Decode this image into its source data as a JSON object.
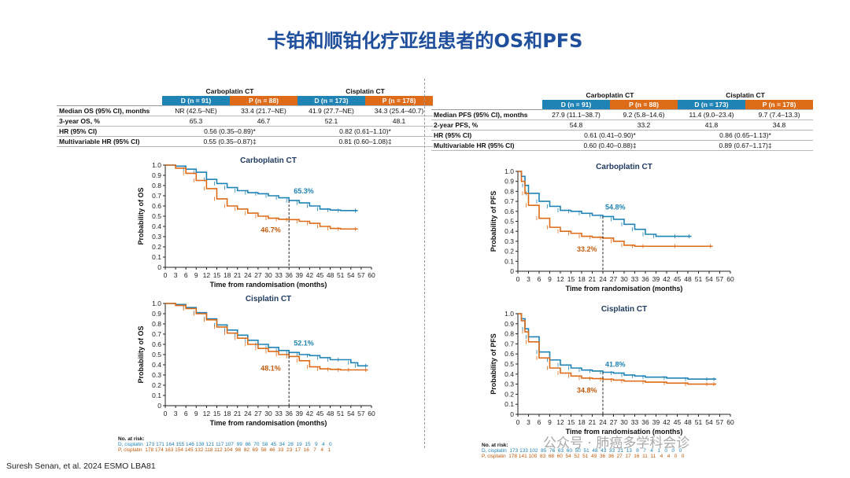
{
  "slide_title": "卡铂和顺铂化疗亚组患者的OS和PFS",
  "citation": "Suresh Senan, et al. 2024 ESMO LBA81",
  "watermark": "公众号 · 肺癌多学科会诊",
  "colors": {
    "durvalumab": "#1f83b5",
    "placebo": "#dd6b18",
    "title": "#1f4e9c"
  },
  "os_table": {
    "group1": "Carboplatin CT",
    "group2": "Cisplatin CT",
    "arms": [
      "D (n = 91)",
      "P (n = 88)",
      "D (n = 173)",
      "P (n = 178)"
    ],
    "rows": [
      {
        "label": "Median OS (95% CI), months",
        "vals": [
          "NR (42.5–NE)",
          "33.4 (21.7–NE)",
          "41.9 (27.7–NE)",
          "34.3 (25.4–40.7)"
        ]
      },
      {
        "label": "3-year OS, %",
        "vals": [
          "65.3",
          "46.7",
          "52.1",
          "48.1"
        ]
      },
      {
        "label": "HR (95% CI)",
        "merged": [
          "0.56 (0.35–0.89)*",
          "0.82 (0.61–1.10)*"
        ]
      },
      {
        "label": "Multivariable HR (95% CI)",
        "merged": [
          "0.55 (0.35–0.87)‡",
          "0.81 (0.60–1.08)‡"
        ]
      }
    ]
  },
  "pfs_table": {
    "group1": "Carboplatin CT",
    "group2": "Cisplatin CT",
    "arms": [
      "D (n = 91)",
      "P (n = 88)",
      "D (n = 173)",
      "P (n = 178)"
    ],
    "rows": [
      {
        "label": "Median PFS (95% CI), months",
        "vals": [
          "27.9 (11.1–38.7)",
          "9.2 (5.8–14.6)",
          "11.4 (9.0–23.4)",
          "9.7 (7.4–13.3)"
        ]
      },
      {
        "label": "2-year PFS, %",
        "vals": [
          "54.8",
          "33.2",
          "41.8",
          "34.8"
        ]
      },
      {
        "label": "HR (95% CI)",
        "merged": [
          "0.61 (0.41–0.90)*",
          "0.86 (0.65–1.13)*"
        ]
      },
      {
        "label": "Multivariable HR (95% CI)",
        "merged": [
          "0.60 (0.40–0.88)‡",
          "0.89 (0.67–1.17)‡"
        ]
      }
    ]
  },
  "risk_tables": {
    "os": {
      "header": "No. at risk:",
      "d_label": "D, cisplatin",
      "p_label": "P, cisplatin",
      "d_values": "173 171 164 155 146 138 121 117 107  99  86  70  58  45  34  28  19  15   9   4   0",
      "p_values": "178 174 163 154 145 132 118 112 104  98  82  69  58  46  33  23  17  16   7   4   1"
    },
    "pfs": {
      "header": "No. at risk:",
      "d_label": "D, cisplatin",
      "p_label": "P, cisplatin",
      "d_values": "173 133 102  85  76  63  60  50  51  48  43  33  21  13   8   7   4   1   0   0   0",
      "p_values": "178 141 100  83  68  60  54  52  51  49  36  36  27  17  16  11  11   4   4   0   0"
    }
  },
  "chart_data": [
    {
      "type": "line",
      "title": "Carboplatin CT",
      "xlabel": "Time from randomisation (months)",
      "ylabel": "Probability of OS",
      "xlim": [
        0,
        60
      ],
      "ylim": [
        0,
        1
      ],
      "xticks": [
        0,
        3,
        6,
        9,
        12,
        15,
        18,
        21,
        24,
        27,
        30,
        33,
        36,
        39,
        42,
        45,
        48,
        51,
        54,
        57,
        60
      ],
      "yticks": [
        "0",
        "0.1",
        "0.2",
        "0.3",
        "0.4",
        "0.5",
        "0.6",
        "0.7",
        "0.8",
        "0.9",
        "1.0"
      ],
      "marker_x": 36,
      "series": [
        {
          "values": [
            [
              0,
              1
            ],
            [
              3,
              0.99
            ],
            [
              6,
              0.96
            ],
            [
              9,
              0.93
            ],
            [
              12,
              0.86
            ],
            [
              15,
              0.82
            ],
            [
              18,
              0.78
            ],
            [
              21,
              0.75
            ],
            [
              24,
              0.73
            ],
            [
              27,
              0.72
            ],
            [
              30,
              0.7
            ],
            [
              33,
              0.68
            ],
            [
              36,
              0.653
            ],
            [
              39,
              0.63
            ],
            [
              42,
              0.6
            ],
            [
              45,
              0.57
            ],
            [
              48,
              0.56
            ],
            [
              51,
              0.555
            ],
            [
              56,
              0.555
            ]
          ],
          "annotation": "65.3%"
        },
        {
          "values": [
            [
              0,
              1
            ],
            [
              3,
              0.97
            ],
            [
              6,
              0.92
            ],
            [
              9,
              0.85
            ],
            [
              12,
              0.77
            ],
            [
              15,
              0.67
            ],
            [
              18,
              0.6
            ],
            [
              21,
              0.57
            ],
            [
              24,
              0.53
            ],
            [
              27,
              0.5
            ],
            [
              30,
              0.48
            ],
            [
              33,
              0.47
            ],
            [
              36,
              0.467
            ],
            [
              39,
              0.45
            ],
            [
              42,
              0.43
            ],
            [
              45,
              0.4
            ],
            [
              48,
              0.38
            ],
            [
              51,
              0.375
            ],
            [
              56,
              0.375
            ]
          ],
          "annotation": "46.7%"
        }
      ]
    },
    {
      "type": "line",
      "title": "Cisplatin CT",
      "xlabel": "Time from randomisation (months)",
      "ylabel": "Probability of OS",
      "xlim": [
        0,
        60
      ],
      "ylim": [
        0,
        1
      ],
      "xticks": [
        0,
        3,
        6,
        9,
        12,
        15,
        18,
        21,
        24,
        27,
        30,
        33,
        36,
        39,
        42,
        45,
        48,
        51,
        54,
        57,
        60
      ],
      "yticks": [
        "0",
        "0.1",
        "0.2",
        "0.3",
        "0.4",
        "0.5",
        "0.6",
        "0.7",
        "0.8",
        "0.9",
        "1.0"
      ],
      "marker_x": 36,
      "series": [
        {
          "values": [
            [
              0,
              1
            ],
            [
              3,
              0.99
            ],
            [
              6,
              0.96
            ],
            [
              9,
              0.91
            ],
            [
              12,
              0.85
            ],
            [
              15,
              0.79
            ],
            [
              18,
              0.74
            ],
            [
              21,
              0.69
            ],
            [
              24,
              0.64
            ],
            [
              27,
              0.6
            ],
            [
              30,
              0.57
            ],
            [
              33,
              0.54
            ],
            [
              36,
              0.521
            ],
            [
              39,
              0.5
            ],
            [
              42,
              0.49
            ],
            [
              45,
              0.47
            ],
            [
              48,
              0.45
            ],
            [
              51,
              0.45
            ],
            [
              54,
              0.42
            ],
            [
              56,
              0.39
            ],
            [
              59,
              0.39
            ]
          ],
          "annotation": "52.1%"
        },
        {
          "values": [
            [
              0,
              1
            ],
            [
              3,
              0.98
            ],
            [
              6,
              0.95
            ],
            [
              9,
              0.9
            ],
            [
              12,
              0.84
            ],
            [
              15,
              0.77
            ],
            [
              18,
              0.71
            ],
            [
              21,
              0.66
            ],
            [
              24,
              0.6
            ],
            [
              27,
              0.56
            ],
            [
              30,
              0.53
            ],
            [
              33,
              0.5
            ],
            [
              36,
              0.481
            ],
            [
              39,
              0.44
            ],
            [
              42,
              0.38
            ],
            [
              45,
              0.36
            ],
            [
              48,
              0.355
            ],
            [
              51,
              0.35
            ],
            [
              54,
              0.35
            ],
            [
              59,
              0.35
            ]
          ],
          "annotation": "48.1%"
        }
      ]
    },
    {
      "type": "line",
      "title": "Carboplatin CT",
      "xlabel": "Time from randomisation (months)",
      "ylabel": "Probability of PFS",
      "xlim": [
        0,
        60
      ],
      "ylim": [
        0,
        1
      ],
      "xticks": [
        0,
        3,
        6,
        9,
        12,
        15,
        18,
        21,
        24,
        27,
        30,
        33,
        36,
        39,
        42,
        45,
        48,
        51,
        54,
        57,
        60
      ],
      "yticks": [
        "0",
        "0.1",
        "0.2",
        "0.3",
        "0.4",
        "0.5",
        "0.6",
        "0.7",
        "0.8",
        "0.9",
        "1.0"
      ],
      "marker_x": 24,
      "series": [
        {
          "values": [
            [
              0,
              1
            ],
            [
              1,
              0.95
            ],
            [
              2,
              0.86
            ],
            [
              3,
              0.78
            ],
            [
              6,
              0.7
            ],
            [
              9,
              0.65
            ],
            [
              12,
              0.61
            ],
            [
              15,
              0.6
            ],
            [
              18,
              0.58
            ],
            [
              21,
              0.56
            ],
            [
              24,
              0.548
            ],
            [
              27,
              0.52
            ],
            [
              30,
              0.47
            ],
            [
              33,
              0.42
            ],
            [
              36,
              0.37
            ],
            [
              39,
              0.35
            ],
            [
              45,
              0.35
            ],
            [
              49,
              0.35
            ]
          ],
          "annotation": "54.8%"
        },
        {
          "values": [
            [
              0,
              1
            ],
            [
              1,
              0.9
            ],
            [
              2,
              0.78
            ],
            [
              3,
              0.66
            ],
            [
              6,
              0.53
            ],
            [
              9,
              0.44
            ],
            [
              12,
              0.4
            ],
            [
              15,
              0.38
            ],
            [
              18,
              0.35
            ],
            [
              21,
              0.34
            ],
            [
              24,
              0.332
            ],
            [
              27,
              0.3
            ],
            [
              30,
              0.26
            ],
            [
              33,
              0.25
            ],
            [
              36,
              0.25
            ],
            [
              45,
              0.25
            ],
            [
              55,
              0.25
            ]
          ],
          "annotation": "33.2%"
        }
      ]
    },
    {
      "type": "line",
      "title": "Cisplatin CT",
      "xlabel": "Time from randomisation (months)",
      "ylabel": "Probability of PFS",
      "xlim": [
        0,
        60
      ],
      "ylim": [
        0,
        1
      ],
      "xticks": [
        0,
        3,
        6,
        9,
        12,
        15,
        18,
        21,
        24,
        27,
        30,
        33,
        36,
        39,
        42,
        45,
        48,
        51,
        54,
        57,
        60
      ],
      "yticks": [
        "0",
        "0.1",
        "0.2",
        "0.3",
        "0.4",
        "0.5",
        "0.6",
        "0.7",
        "0.8",
        "0.9",
        "1.0"
      ],
      "marker_x": 24,
      "series": [
        {
          "values": [
            [
              0,
              1
            ],
            [
              1,
              0.95
            ],
            [
              2,
              0.85
            ],
            [
              3,
              0.77
            ],
            [
              6,
              0.62
            ],
            [
              9,
              0.54
            ],
            [
              12,
              0.49
            ],
            [
              15,
              0.46
            ],
            [
              18,
              0.44
            ],
            [
              21,
              0.43
            ],
            [
              24,
              0.418
            ],
            [
              27,
              0.41
            ],
            [
              30,
              0.39
            ],
            [
              33,
              0.38
            ],
            [
              36,
              0.37
            ],
            [
              42,
              0.36
            ],
            [
              48,
              0.35
            ],
            [
              54,
              0.35
            ],
            [
              56,
              0.35
            ]
          ],
          "annotation": "41.8%"
        },
        {
          "values": [
            [
              0,
              1
            ],
            [
              1,
              0.93
            ],
            [
              2,
              0.82
            ],
            [
              3,
              0.72
            ],
            [
              6,
              0.56
            ],
            [
              9,
              0.46
            ],
            [
              12,
              0.41
            ],
            [
              15,
              0.38
            ],
            [
              18,
              0.36
            ],
            [
              21,
              0.355
            ],
            [
              24,
              0.348
            ],
            [
              27,
              0.34
            ],
            [
              30,
              0.33
            ],
            [
              36,
              0.32
            ],
            [
              42,
              0.31
            ],
            [
              48,
              0.3
            ],
            [
              54,
              0.3
            ],
            [
              56,
              0.3
            ]
          ],
          "annotation": "34.8%"
        }
      ]
    }
  ]
}
